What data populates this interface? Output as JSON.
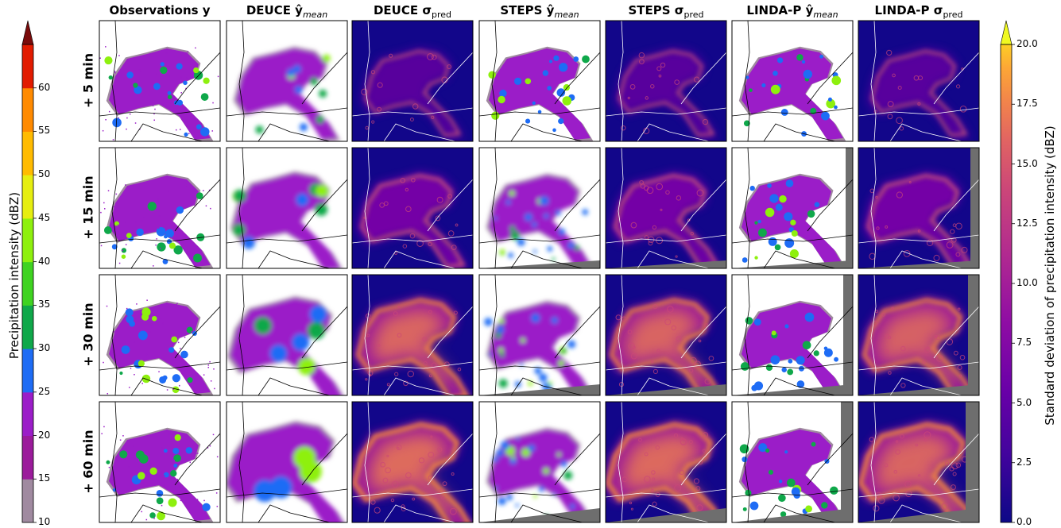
{
  "columns": [
    {
      "main": "Observations y",
      "sub": ""
    },
    {
      "main": "DEUCE ŷ",
      "sub": "mean"
    },
    {
      "main": "DEUCE σ",
      "sub": "pred"
    },
    {
      "main": "STEPS ŷ",
      "sub": "mean"
    },
    {
      "main": "STEPS σ",
      "sub": "pred"
    },
    {
      "main": "LINDA-P ŷ",
      "sub": "mean"
    },
    {
      "main": "LINDA-P σ",
      "sub": "pred"
    }
  ],
  "rows": [
    "+ 5 min",
    "+ 15 min",
    "+ 30 min",
    "+ 60 min"
  ],
  "colorbars": {
    "left": {
      "label": "Precipitation intensity (dBZ)",
      "ticks": [
        "10",
        "15",
        "20",
        "25",
        "30",
        "35",
        "40",
        "45",
        "50",
        "55",
        "60"
      ],
      "colors": [
        "#a08aa0",
        "#9b1b9b",
        "#9b1dc8",
        "#1e6cf5",
        "#0fa84a",
        "#3fd321",
        "#8ef00e",
        "#e6ee10",
        "#ffbb00",
        "#ff8a00",
        "#e21b00"
      ],
      "extend_color": "#7a0b0b"
    },
    "right": {
      "label": "Standard deviation of precipitation intensity (dBZ)",
      "ticks": [
        "0.0",
        "2.5",
        "5.0",
        "7.5",
        "10.0",
        "12.5",
        "15.0",
        "17.5",
        "20.0"
      ],
      "colormap": "plasma",
      "extend_color": "#f0f921"
    }
  },
  "chart_data": {
    "type": "heatmap",
    "layout": "4 lead times x 7 panels of precipitation maps",
    "left_colorbar_range": [
      10,
      60
    ],
    "right_colorbar_range": [
      0.0,
      20.0
    ]
  }
}
